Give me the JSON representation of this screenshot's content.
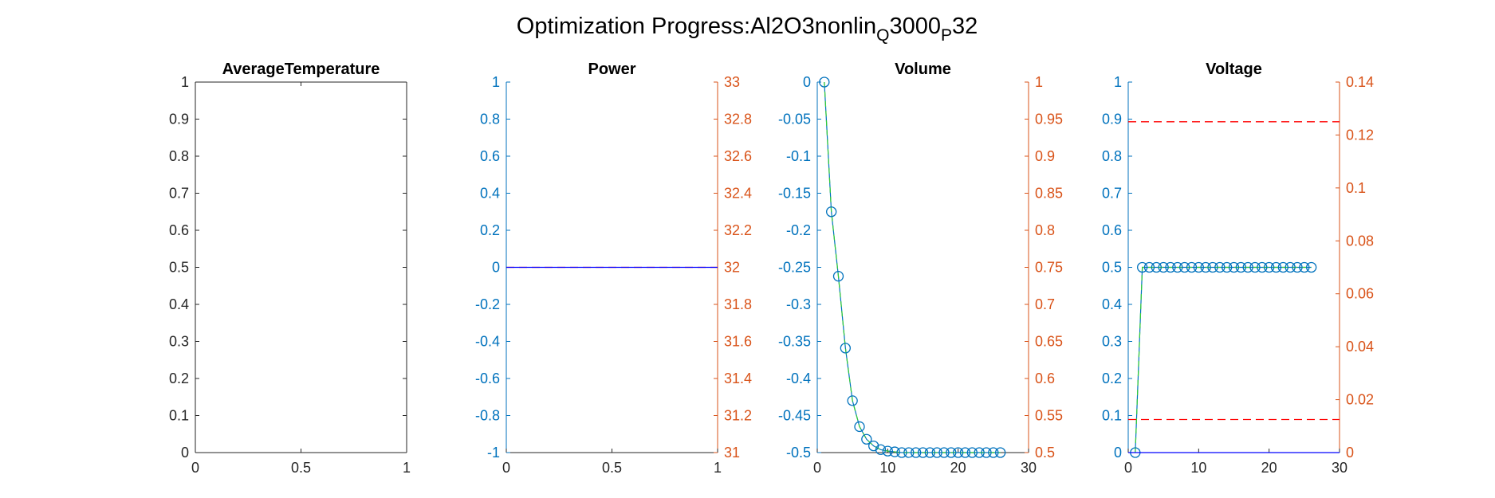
{
  "figure": {
    "title_main": "Optimization Progress:Al2O3nonlin",
    "title_sub1": "Q",
    "title_mid": "3000",
    "title_sub2": "P",
    "title_end": "32"
  },
  "colors": {
    "left_axis": "#0072BD",
    "right_axis": "#D95319",
    "black_axis": "#262626",
    "marker": "#0072BD",
    "line_green": "#33CC33",
    "dashed_red": "#FF0000",
    "zero_line": "#0000FF"
  },
  "chart_data": [
    {
      "type": "line",
      "title": "AverageTemperature",
      "xlim": [
        0,
        1
      ],
      "ylim": [
        0,
        1
      ],
      "xticks": [
        "0",
        "0.5",
        "1"
      ],
      "yticks": [
        "0",
        "0.1",
        "0.2",
        "0.3",
        "0.4",
        "0.5",
        "0.6",
        "0.7",
        "0.8",
        "0.9",
        "1"
      ],
      "series": []
    },
    {
      "type": "line",
      "title": "Power",
      "xlim": [
        0,
        1
      ],
      "ylim": [
        -1,
        1
      ],
      "y2lim": [
        31,
        33
      ],
      "xticks": [
        "0",
        "0.5",
        "1"
      ],
      "yticks": [
        "-1",
        "-0.8",
        "-0.6",
        "-0.4",
        "-0.2",
        "0",
        "0.2",
        "0.4",
        "0.6",
        "0.8",
        "1"
      ],
      "y2ticks": [
        "31",
        "31.2",
        "31.4",
        "31.6",
        "31.8",
        "32",
        "32.2",
        "32.4",
        "32.6",
        "32.8",
        "33"
      ],
      "series": [
        {
          "axis": "right",
          "style": "dashed-red",
          "x": [
            0,
            1
          ],
          "y": [
            32,
            32
          ]
        },
        {
          "axis": "left",
          "style": "blue-line",
          "x": [
            0,
            1
          ],
          "y": [
            0,
            0
          ]
        }
      ]
    },
    {
      "type": "line",
      "title": "Volume",
      "xlim": [
        0,
        30
      ],
      "ylim": [
        -0.5,
        0
      ],
      "y2lim": [
        0.5,
        1
      ],
      "xticks": [
        "0",
        "10",
        "20",
        "30"
      ],
      "yticks": [
        "-0.5",
        "-0.45",
        "-0.4",
        "-0.35",
        "-0.3",
        "-0.25",
        "-0.2",
        "-0.15",
        "-0.1",
        "-0.05",
        "0"
      ],
      "y2ticks": [
        "0.5",
        "0.55",
        "0.6",
        "0.65",
        "0.7",
        "0.75",
        "0.8",
        "0.85",
        "0.9",
        "0.95",
        "1"
      ],
      "series": [
        {
          "axis": "left",
          "style": "markers-green-line",
          "x": [
            1,
            2,
            3,
            4,
            5,
            6,
            7,
            8,
            9,
            10,
            11,
            12,
            13,
            14,
            15,
            16,
            17,
            18,
            19,
            20,
            21,
            22,
            23,
            24,
            25,
            26
          ],
          "y": [
            0,
            -0.175,
            -0.262,
            -0.359,
            -0.43,
            -0.465,
            -0.482,
            -0.491,
            -0.496,
            -0.498,
            -0.499,
            -0.5,
            -0.5,
            -0.5,
            -0.5,
            -0.5,
            -0.5,
            -0.5,
            -0.5,
            -0.5,
            -0.5,
            -0.5,
            -0.5,
            -0.5,
            -0.5,
            -0.5
          ]
        }
      ]
    },
    {
      "type": "line",
      "title": "Voltage",
      "xlim": [
        0,
        30
      ],
      "ylim": [
        0,
        1
      ],
      "y2lim": [
        0,
        0.14
      ],
      "xticks": [
        "0",
        "10",
        "20",
        "30"
      ],
      "yticks": [
        "0",
        "0.1",
        "0.2",
        "0.3",
        "0.4",
        "0.5",
        "0.6",
        "0.7",
        "0.8",
        "0.9",
        "1"
      ],
      "y2ticks": [
        "0",
        "0.02",
        "0.04",
        "0.06",
        "0.08",
        "0.1",
        "0.12",
        "0.14"
      ],
      "series": [
        {
          "axis": "left",
          "style": "markers-green-line",
          "x": [
            1,
            2,
            3,
            4,
            5,
            6,
            7,
            8,
            9,
            10,
            11,
            12,
            13,
            14,
            15,
            16,
            17,
            18,
            19,
            20,
            21,
            22,
            23,
            24,
            25,
            26
          ],
          "y": [
            0,
            0.5,
            0.5,
            0.5,
            0.5,
            0.5,
            0.5,
            0.5,
            0.5,
            0.5,
            0.5,
            0.5,
            0.5,
            0.5,
            0.5,
            0.5,
            0.5,
            0.5,
            0.5,
            0.5,
            0.5,
            0.5,
            0.5,
            0.5,
            0.5,
            0.5
          ]
        },
        {
          "axis": "right",
          "style": "dashed-red",
          "x": [
            0,
            30
          ],
          "y": [
            0.125,
            0.125
          ]
        },
        {
          "axis": "right",
          "style": "dashed-red",
          "x": [
            0,
            30
          ],
          "y": [
            0.0125,
            0.0125
          ]
        },
        {
          "axis": "left",
          "style": "blue-line",
          "x": [
            0,
            30
          ],
          "y": [
            0,
            0
          ]
        }
      ]
    }
  ]
}
